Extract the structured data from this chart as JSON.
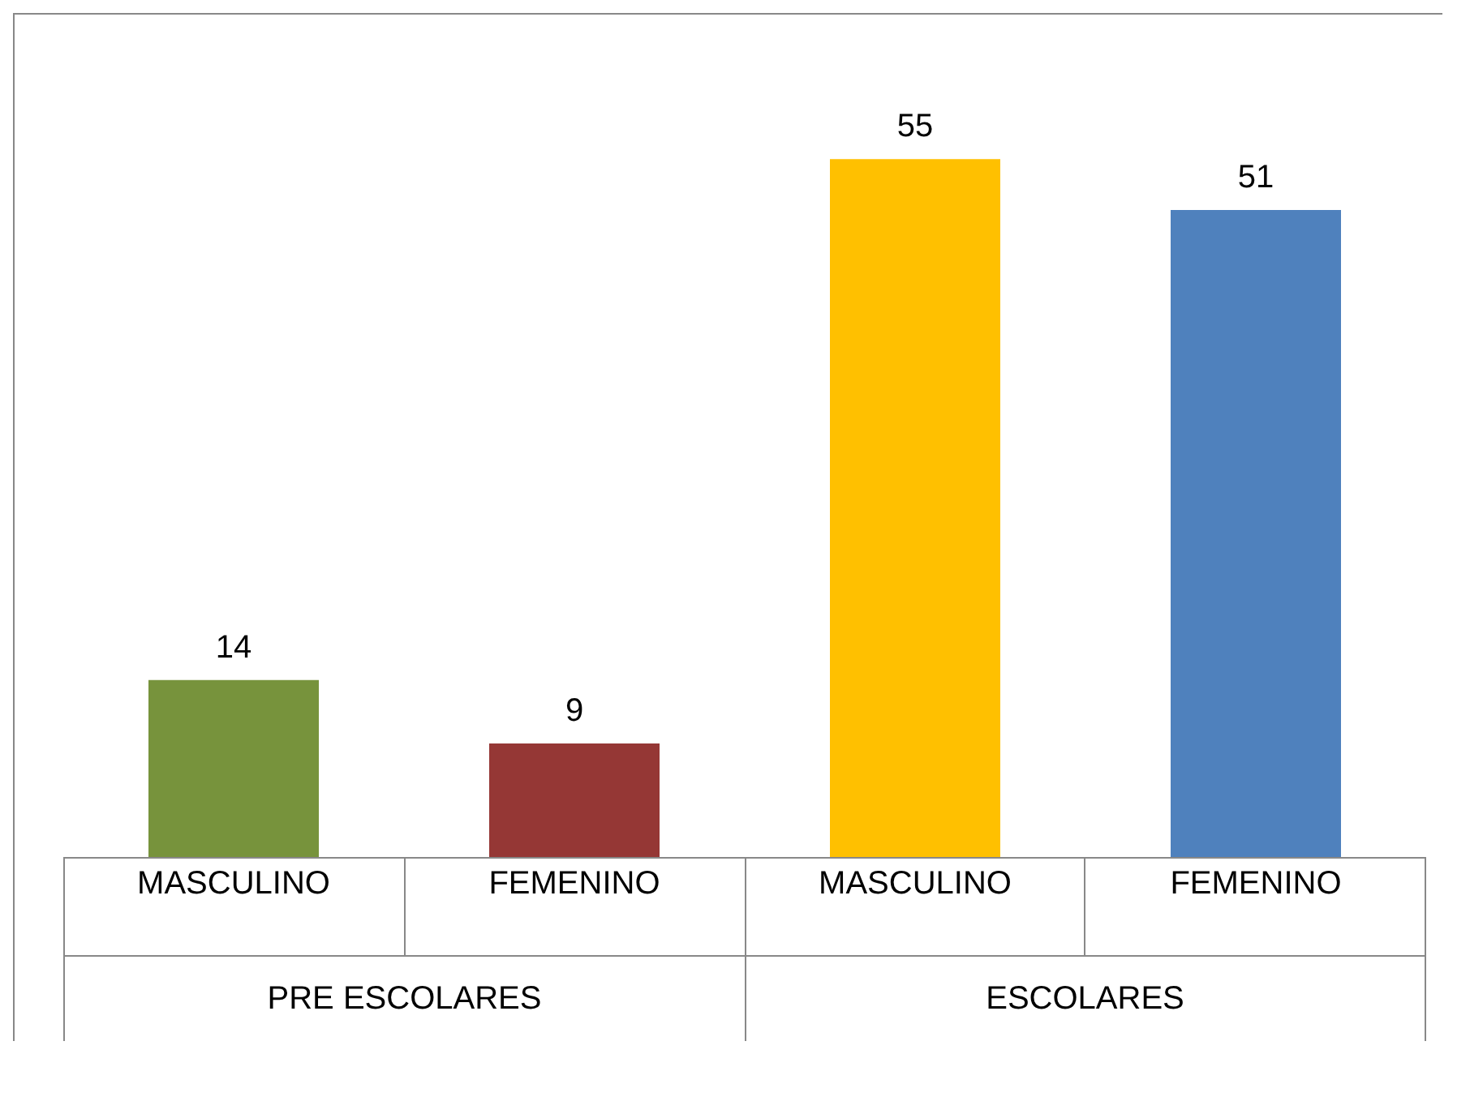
{
  "chart_data": {
    "type": "bar",
    "categories": [
      "MASCULINO",
      "FEMENINO",
      "MASCULINO",
      "FEMENINO"
    ],
    "values": [
      14,
      9,
      55,
      51
    ],
    "colors": [
      "#77933c",
      "#953735",
      "#ffc000",
      "#4f81bd"
    ],
    "data_labels": true,
    "annotations": [
      "PRE ESCOLARES",
      "ESCOLARES"
    ]
  }
}
